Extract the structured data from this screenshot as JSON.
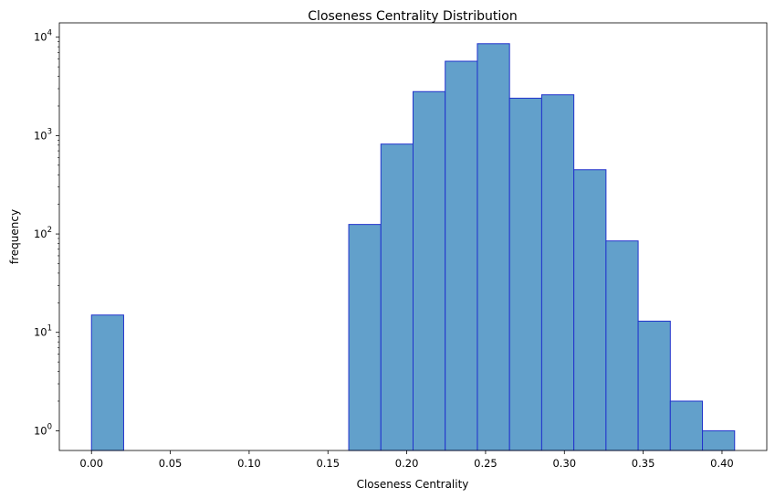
{
  "chart_data": {
    "type": "bar",
    "title": "Closeness Centrality Distribution",
    "xlabel": "Closeness Centrality",
    "ylabel": "frequency",
    "yscale": "log",
    "xlim": [
      -0.0204,
      0.4284
    ],
    "ylim": [
      0.63,
      14000
    ],
    "grid": false,
    "bar_fill": "#62a0cb",
    "bar_edge": "#2233cc",
    "bins": [
      {
        "x0": 0.0,
        "x1": 0.0204,
        "count": 15
      },
      {
        "x0": 0.0204,
        "x1": 0.0408,
        "count": 0
      },
      {
        "x0": 0.0408,
        "x1": 0.0612,
        "count": 0
      },
      {
        "x0": 0.0612,
        "x1": 0.0816,
        "count": 0
      },
      {
        "x0": 0.0816,
        "x1": 0.102,
        "count": 0
      },
      {
        "x0": 0.102,
        "x1": 0.1224,
        "count": 0
      },
      {
        "x0": 0.1224,
        "x1": 0.1428,
        "count": 0
      },
      {
        "x0": 0.1428,
        "x1": 0.1632,
        "count": 0
      },
      {
        "x0": 0.1632,
        "x1": 0.1836,
        "count": 125
      },
      {
        "x0": 0.1836,
        "x1": 0.204,
        "count": 820
      },
      {
        "x0": 0.204,
        "x1": 0.2244,
        "count": 2800
      },
      {
        "x0": 0.2244,
        "x1": 0.2448,
        "count": 5700
      },
      {
        "x0": 0.2448,
        "x1": 0.2652,
        "count": 8600
      },
      {
        "x0": 0.2652,
        "x1": 0.2856,
        "count": 2400
      },
      {
        "x0": 0.2856,
        "x1": 0.306,
        "count": 2600
      },
      {
        "x0": 0.306,
        "x1": 0.3264,
        "count": 450
      },
      {
        "x0": 0.3264,
        "x1": 0.3468,
        "count": 85
      },
      {
        "x0": 0.3468,
        "x1": 0.3672,
        "count": 13
      },
      {
        "x0": 0.3672,
        "x1": 0.3876,
        "count": 2
      },
      {
        "x0": 0.3876,
        "x1": 0.408,
        "count": 1
      }
    ],
    "x_ticks": [
      {
        "value": 0.0,
        "label": "0.00"
      },
      {
        "value": 0.05,
        "label": "0.05"
      },
      {
        "value": 0.1,
        "label": "0.10"
      },
      {
        "value": 0.15,
        "label": "0.15"
      },
      {
        "value": 0.2,
        "label": "0.20"
      },
      {
        "value": 0.25,
        "label": "0.25"
      },
      {
        "value": 0.3,
        "label": "0.30"
      },
      {
        "value": 0.35,
        "label": "0.35"
      },
      {
        "value": 0.4,
        "label": "0.40"
      }
    ],
    "y_ticks": [
      {
        "value": 1,
        "base": "10",
        "exp": "0"
      },
      {
        "value": 10,
        "base": "10",
        "exp": "1"
      },
      {
        "value": 100,
        "base": "10",
        "exp": "2"
      },
      {
        "value": 1000,
        "base": "10",
        "exp": "3"
      },
      {
        "value": 10000,
        "base": "10",
        "exp": "4"
      }
    ]
  }
}
